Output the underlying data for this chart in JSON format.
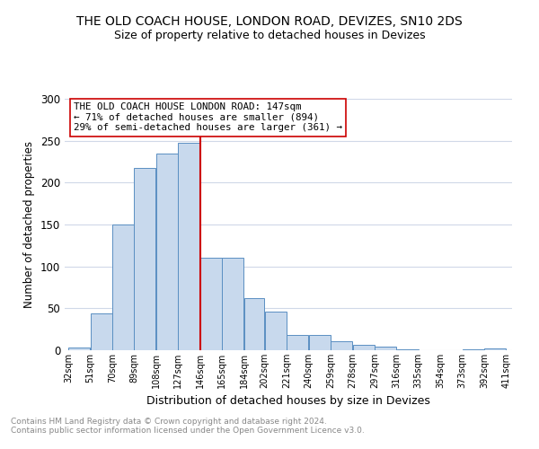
{
  "title": "THE OLD COACH HOUSE, LONDON ROAD, DEVIZES, SN10 2DS",
  "subtitle": "Size of property relative to detached houses in Devizes",
  "xlabel": "Distribution of detached houses by size in Devizes",
  "ylabel": "Number of detached properties",
  "bar_left_edges": [
    32,
    51,
    70,
    89,
    108,
    127,
    146,
    165,
    184,
    202,
    221,
    240,
    259,
    278,
    297,
    316,
    335,
    354,
    373,
    392
  ],
  "bar_widths": [
    19,
    19,
    19,
    19,
    19,
    19,
    19,
    19,
    18,
    19,
    19,
    19,
    19,
    19,
    19,
    19,
    19,
    19,
    19,
    19
  ],
  "bar_heights": [
    3,
    44,
    150,
    218,
    235,
    247,
    110,
    110,
    62,
    46,
    18,
    18,
    11,
    6,
    4,
    1,
    0,
    0,
    1,
    2
  ],
  "bar_color": "#c8d9ed",
  "bar_edge_color": "#5a8fc2",
  "tick_labels": [
    "32sqm",
    "51sqm",
    "70sqm",
    "89sqm",
    "108sqm",
    "127sqm",
    "146sqm",
    "165sqm",
    "184sqm",
    "202sqm",
    "221sqm",
    "240sqm",
    "259sqm",
    "278sqm",
    "297sqm",
    "316sqm",
    "335sqm",
    "354sqm",
    "373sqm",
    "392sqm",
    "411sqm"
  ],
  "vline_x": 146,
  "vline_color": "#cc0000",
  "ylim": [
    0,
    300
  ],
  "yticks": [
    0,
    50,
    100,
    150,
    200,
    250,
    300
  ],
  "annotation_title": "THE OLD COACH HOUSE LONDON ROAD: 147sqm",
  "annotation_line1": "← 71% of detached houses are smaller (894)",
  "annotation_line2": "29% of semi-detached houses are larger (361) →",
  "annotation_box_color": "#ffffff",
  "annotation_box_edge": "#cc0000",
  "footnote1": "Contains HM Land Registry data © Crown copyright and database right 2024.",
  "footnote2": "Contains public sector information licensed under the Open Government Licence v3.0.",
  "background_color": "#ffffff",
  "grid_color": "#d0d8e8"
}
